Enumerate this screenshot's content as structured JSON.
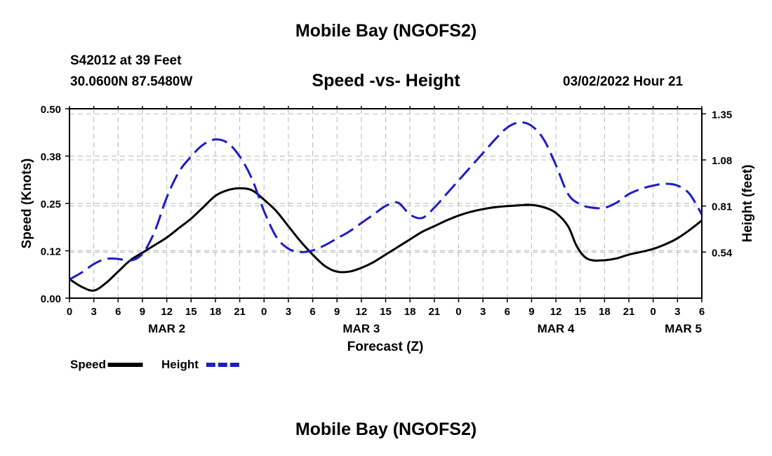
{
  "page": {
    "title_top": "Mobile Bay (NGOFS2)",
    "title_bottom": "Mobile Bay (NGOFS2)",
    "station": "S42012 at 39 Feet",
    "coords": "30.0600N  87.5480W",
    "subtitle": "Speed -vs- Height",
    "datetime": "03/02/2022 Hour 21"
  },
  "chart_data": {
    "type": "line",
    "title": "Speed -vs- Height",
    "xlabel": "Forecast (Z)",
    "ylabel": "Speed (Knots)",
    "y2label": "Height (feet)",
    "x_unit": "hours from MAR 2 00Z",
    "xlim": [
      0,
      78
    ],
    "ylim": [
      0,
      0.5
    ],
    "y2lim": [
      0.27,
      1.38
    ],
    "grid": true,
    "x_ticks": [
      0,
      3,
      6,
      9,
      12,
      15,
      18,
      21,
      24,
      27,
      30,
      33,
      36,
      39,
      42,
      45,
      48,
      51,
      54,
      57,
      60,
      63,
      66,
      69,
      72,
      75,
      78
    ],
    "x_tick_labels": [
      "0",
      "3",
      "6",
      "9",
      "12",
      "15",
      "18",
      "21",
      "0",
      "3",
      "6",
      "9",
      "12",
      "15",
      "18",
      "21",
      "0",
      "3",
      "6",
      "9",
      "12",
      "15",
      "18",
      "21",
      "0",
      "3",
      "6"
    ],
    "date_labels": [
      {
        "x": 12,
        "text": "MAR 2",
        "align": "middle"
      },
      {
        "x": 36,
        "text": "MAR 3",
        "align": "middle"
      },
      {
        "x": 60,
        "text": "MAR 4",
        "align": "middle"
      },
      {
        "x": 78,
        "text": "MAR 5",
        "align": "end"
      }
    ],
    "y_ticks": [
      0.0,
      0.125,
      0.25,
      0.375,
      0.5
    ],
    "y_tick_labels": [
      "0.00",
      "0.12",
      "0.25",
      "0.38",
      "0.50"
    ],
    "y2_ticks": [
      0.54,
      0.81,
      1.08,
      1.35
    ],
    "y2_tick_labels": [
      "0.54",
      "0.81",
      "1.08",
      "1.35"
    ],
    "series": [
      {
        "name": "Speed",
        "axis": "left",
        "color": "#000000",
        "style": "solid",
        "x": [
          0,
          1.5,
          3,
          4.5,
          6,
          7.5,
          9,
          10.5,
          12,
          13.5,
          15,
          16.5,
          18,
          19.5,
          21,
          22.5,
          24,
          25.5,
          27,
          28.5,
          30,
          31.5,
          33,
          34.5,
          36,
          37.5,
          39,
          40.5,
          42,
          43.5,
          45,
          46.5,
          48,
          49.5,
          51,
          52.5,
          54,
          55.5,
          57,
          58.5,
          60,
          61.5,
          62.5,
          63.5,
          64.5,
          66,
          67.5,
          69,
          70.5,
          72,
          73.5,
          75,
          76.5,
          78
        ],
        "values": [
          0.05,
          0.03,
          0.02,
          0.04,
          0.07,
          0.1,
          0.12,
          0.14,
          0.16,
          0.185,
          0.21,
          0.24,
          0.27,
          0.285,
          0.29,
          0.285,
          0.26,
          0.23,
          0.19,
          0.15,
          0.115,
          0.085,
          0.07,
          0.07,
          0.08,
          0.095,
          0.115,
          0.135,
          0.155,
          0.175,
          0.19,
          0.205,
          0.218,
          0.228,
          0.235,
          0.24,
          0.243,
          0.245,
          0.246,
          0.24,
          0.225,
          0.19,
          0.14,
          0.11,
          0.1,
          0.1,
          0.105,
          0.115,
          0.122,
          0.13,
          0.142,
          0.158,
          0.18,
          0.205
        ]
      },
      {
        "name": "Height",
        "axis": "right",
        "color": "#1c1cc8",
        "style": "dashed",
        "x": [
          0,
          1.5,
          3,
          4.5,
          6,
          7.5,
          9,
          10.5,
          12,
          13.5,
          15,
          16.5,
          18,
          19.5,
          21,
          22.5,
          24,
          25.5,
          27,
          28.5,
          30,
          31.5,
          33,
          34.5,
          36,
          37.5,
          39,
          40.5,
          42,
          43.5,
          45,
          46.5,
          48,
          49.5,
          51,
          52.5,
          54,
          55.5,
          57,
          58.5,
          60,
          61.5,
          63,
          64.5,
          66,
          67.5,
          69,
          70.5,
          72,
          73.5,
          75,
          76.5,
          78
        ],
        "values": [
          0.38,
          0.42,
          0.47,
          0.5,
          0.5,
          0.49,
          0.53,
          0.66,
          0.86,
          1.01,
          1.1,
          1.17,
          1.2,
          1.18,
          1.1,
          0.97,
          0.78,
          0.63,
          0.56,
          0.54,
          0.55,
          0.58,
          0.62,
          0.66,
          0.71,
          0.76,
          0.81,
          0.83,
          0.76,
          0.74,
          0.8,
          0.88,
          0.96,
          1.04,
          1.12,
          1.2,
          1.27,
          1.3,
          1.28,
          1.2,
          1.05,
          0.88,
          0.82,
          0.8,
          0.8,
          0.83,
          0.88,
          0.91,
          0.93,
          0.94,
          0.93,
          0.88,
          0.76
        ]
      }
    ],
    "legend": {
      "placement": "bottom-left",
      "items": [
        {
          "label": "Speed",
          "color": "#000000",
          "style": "solid"
        },
        {
          "label": "Height",
          "color": "#1c1cc8",
          "style": "dashed"
        }
      ]
    }
  }
}
